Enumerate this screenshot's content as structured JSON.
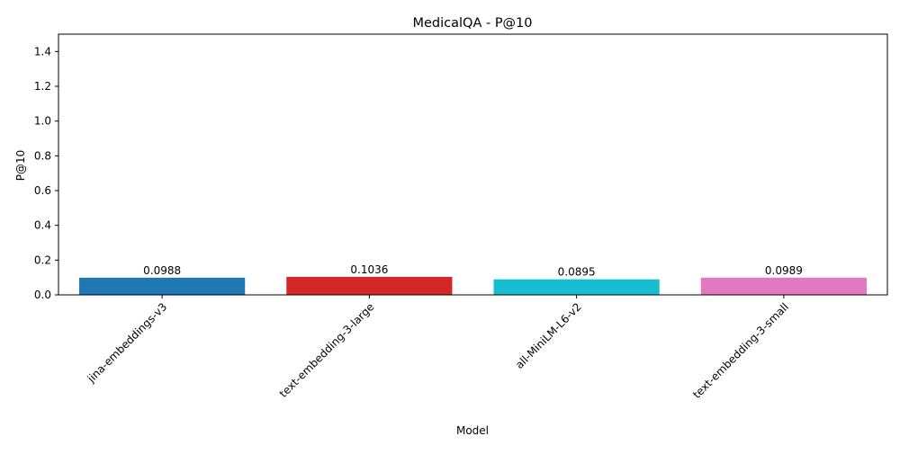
{
  "chart_data": {
    "type": "bar",
    "title": "MedicalQA - P@10",
    "xlabel": "Model",
    "ylabel": "P@10",
    "categories": [
      "jina-embeddings-v3",
      "text-embedding-3-large",
      "all-MiniLM-L6-v2",
      "text-embedding-3-small"
    ],
    "values": [
      0.0988,
      0.1036,
      0.0895,
      0.0989
    ],
    "value_labels": [
      "0.0988",
      "0.1036",
      "0.0895",
      "0.0989"
    ],
    "colors": [
      "#1f77b4",
      "#d62728",
      "#17becf",
      "#e377c2"
    ],
    "ylim": [
      0,
      1.5
    ],
    "yticks": [
      0.0,
      0.2,
      0.4,
      0.6,
      0.8,
      1.0,
      1.2,
      1.4
    ],
    "ytick_labels": [
      "0.0",
      "0.2",
      "0.4",
      "0.6",
      "0.8",
      "1.0",
      "1.2",
      "1.4"
    ],
    "grid": false,
    "legend": "none"
  }
}
